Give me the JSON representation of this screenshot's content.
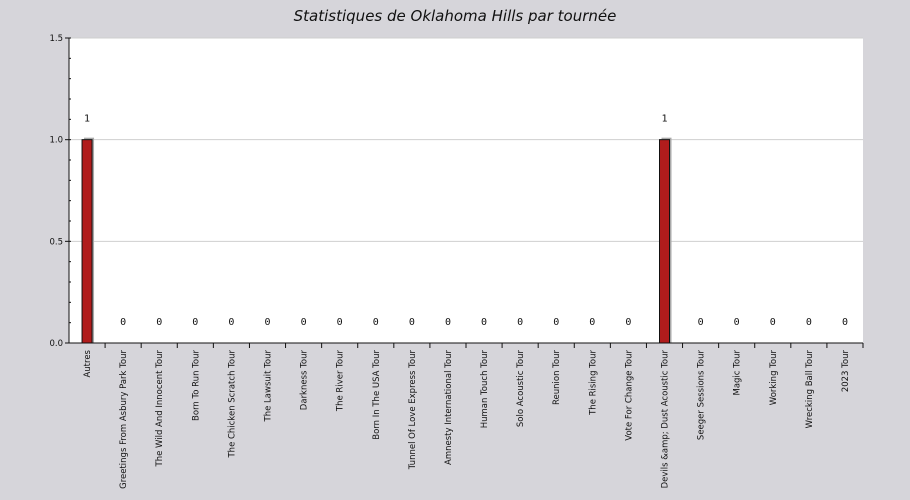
{
  "chart_data": {
    "type": "bar",
    "title": "Statistiques de Oklahoma Hills par tournée",
    "xlabel": "",
    "ylabel": "",
    "ylim": [
      0,
      1.5
    ],
    "yticks": [
      "0.0",
      "0.5",
      "1.0",
      "1.5"
    ],
    "grid": true,
    "bar_color": "#b01c1c",
    "shadow_color": "#a9a9a9",
    "categories": [
      "Autres",
      "Greetings From Asbury Park Tour",
      "The Wild And Innocent Tour",
      "Born To Run Tour",
      "The Chicken Scratch Tour",
      "The Lawsuit Tour",
      "Darkness Tour",
      "The River Tour",
      "Born In The USA Tour",
      "Tunnel Of Love Express Tour",
      "Amnesty International Tour",
      "Human Touch Tour",
      "Solo Acoustic Tour",
      "Reunion Tour",
      "The Rising Tour",
      "Vote For Change Tour",
      "Devils &amp; Dust Acoustic Tour",
      "Seeger Sessions Tour",
      "Magic Tour",
      "Working Tour",
      "Wrecking Ball Tour",
      "2023 Tour"
    ],
    "values": [
      1,
      0,
      0,
      0,
      0,
      0,
      0,
      0,
      0,
      0,
      0,
      0,
      0,
      0,
      0,
      0,
      1,
      0,
      0,
      0,
      0,
      0
    ]
  }
}
